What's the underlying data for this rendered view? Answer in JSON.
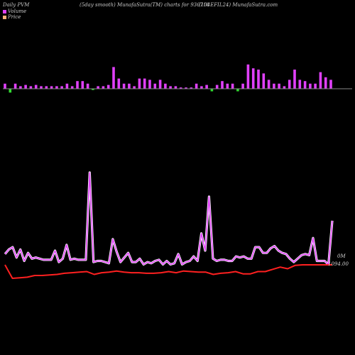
{
  "header": {
    "left": "Daily PVM",
    "center": "(5day smooth) MunafaSutra(TM) charts for 936718",
    "right": "(104EFIL24) MunafaSutra.com"
  },
  "legend": [
    {
      "label": "Volume",
      "color": "#e040fb"
    },
    {
      "label": "Price",
      "color": "#ffb07a"
    }
  ],
  "chart_data": {
    "type": "line",
    "title": "(5day smooth) MunafaSutra(TM) charts for 936718",
    "annotations": {
      "volume_last": "0M",
      "price_last": "1094.00"
    },
    "colors": {
      "up": "#e040fb",
      "down": "#33dd33",
      "baseline": "#888888",
      "price": "#ff2020"
    },
    "volume_bars": [
      {
        "v": 2,
        "d": "up"
      },
      {
        "v": 1.5,
        "d": "down"
      },
      {
        "v": 2,
        "d": "up"
      },
      {
        "v": 1,
        "d": "up"
      },
      {
        "v": 1.5,
        "d": "up"
      },
      {
        "v": 1,
        "d": "up"
      },
      {
        "v": 1.5,
        "d": "up"
      },
      {
        "v": 1,
        "d": "up"
      },
      {
        "v": 1,
        "d": "up"
      },
      {
        "v": 1,
        "d": "up"
      },
      {
        "v": 1,
        "d": "up"
      },
      {
        "v": 1,
        "d": "up"
      },
      {
        "v": 2,
        "d": "up"
      },
      {
        "v": 1,
        "d": "up"
      },
      {
        "v": 3,
        "d": "up"
      },
      {
        "v": 3,
        "d": "up"
      },
      {
        "v": 2,
        "d": "up"
      },
      {
        "v": 0.5,
        "d": "down"
      },
      {
        "v": 1,
        "d": "up"
      },
      {
        "v": 1,
        "d": "up"
      },
      {
        "v": 1.5,
        "d": "up"
      },
      {
        "v": 8.5,
        "d": "up"
      },
      {
        "v": 4,
        "d": "up"
      },
      {
        "v": 2,
        "d": "up"
      },
      {
        "v": 2,
        "d": "up"
      },
      {
        "v": 1,
        "d": "up"
      },
      {
        "v": 4,
        "d": "up"
      },
      {
        "v": 4,
        "d": "up"
      },
      {
        "v": 3.5,
        "d": "up"
      },
      {
        "v": 2,
        "d": "up"
      },
      {
        "v": 3.5,
        "d": "up"
      },
      {
        "v": 2,
        "d": "up"
      },
      {
        "v": 1,
        "d": "up"
      },
      {
        "v": 1,
        "d": "up"
      },
      {
        "v": 0.5,
        "d": "up"
      },
      {
        "v": 0.5,
        "d": "up"
      },
      {
        "v": 0.5,
        "d": "up"
      },
      {
        "v": 2,
        "d": "up"
      },
      {
        "v": 1,
        "d": "up"
      },
      {
        "v": 1.5,
        "d": "up"
      },
      {
        "v": 1,
        "d": "down"
      },
      {
        "v": 1.5,
        "d": "up"
      },
      {
        "v": 3,
        "d": "up"
      },
      {
        "v": 2,
        "d": "up"
      },
      {
        "v": 2,
        "d": "up"
      },
      {
        "v": 1,
        "d": "down"
      },
      {
        "v": 2,
        "d": "up"
      },
      {
        "v": 9.5,
        "d": "up"
      },
      {
        "v": 8,
        "d": "up"
      },
      {
        "v": 7.5,
        "d": "up"
      },
      {
        "v": 6,
        "d": "up"
      },
      {
        "v": 3.5,
        "d": "up"
      },
      {
        "v": 2,
        "d": "up"
      },
      {
        "v": 2,
        "d": "up"
      },
      {
        "v": 1,
        "d": "up"
      },
      {
        "v": 3.5,
        "d": "up"
      },
      {
        "v": 7.5,
        "d": "up"
      },
      {
        "v": 3.5,
        "d": "up"
      },
      {
        "v": 3,
        "d": "up"
      },
      {
        "v": 2,
        "d": "up"
      },
      {
        "v": 2,
        "d": "up"
      },
      {
        "v": 6.5,
        "d": "up"
      },
      {
        "v": 4.5,
        "d": "up"
      },
      {
        "v": 3.5,
        "d": "up"
      }
    ],
    "volume_line": [
      10,
      14,
      16,
      7,
      14,
      4,
      11,
      6,
      7,
      6,
      5,
      5,
      5,
      13,
      3,
      6,
      18,
      5,
      6,
      5,
      5,
      5,
      81,
      3,
      4,
      4,
      3,
      2,
      23,
      12,
      3,
      7,
      11,
      3,
      3,
      6,
      1,
      3,
      2,
      4,
      5,
      1,
      4,
      1,
      2,
      10,
      1,
      3,
      4,
      8,
      4,
      28,
      13,
      60,
      6,
      4,
      5,
      5,
      4,
      4,
      8,
      7,
      8,
      6,
      6,
      16,
      16,
      11,
      11,
      15,
      17,
      13,
      11,
      10,
      6,
      3,
      6,
      9,
      10,
      9,
      24,
      4,
      4,
      4,
      1,
      39
    ],
    "price_line": [
      1094,
      1070,
      1071,
      1072,
      1075,
      1075,
      1076,
      1077,
      1079,
      1080,
      1081,
      1082,
      1077,
      1080,
      1081,
      1083,
      1081,
      1080,
      1080,
      1079,
      1079,
      1080,
      1082,
      1080,
      1083,
      1082,
      1081,
      1081,
      1077,
      1079,
      1080,
      1082,
      1078,
      1078,
      1082,
      1082,
      1086,
      1090,
      1087,
      1093,
      1094,
      1094,
      1094,
      1094,
      1094
    ]
  }
}
